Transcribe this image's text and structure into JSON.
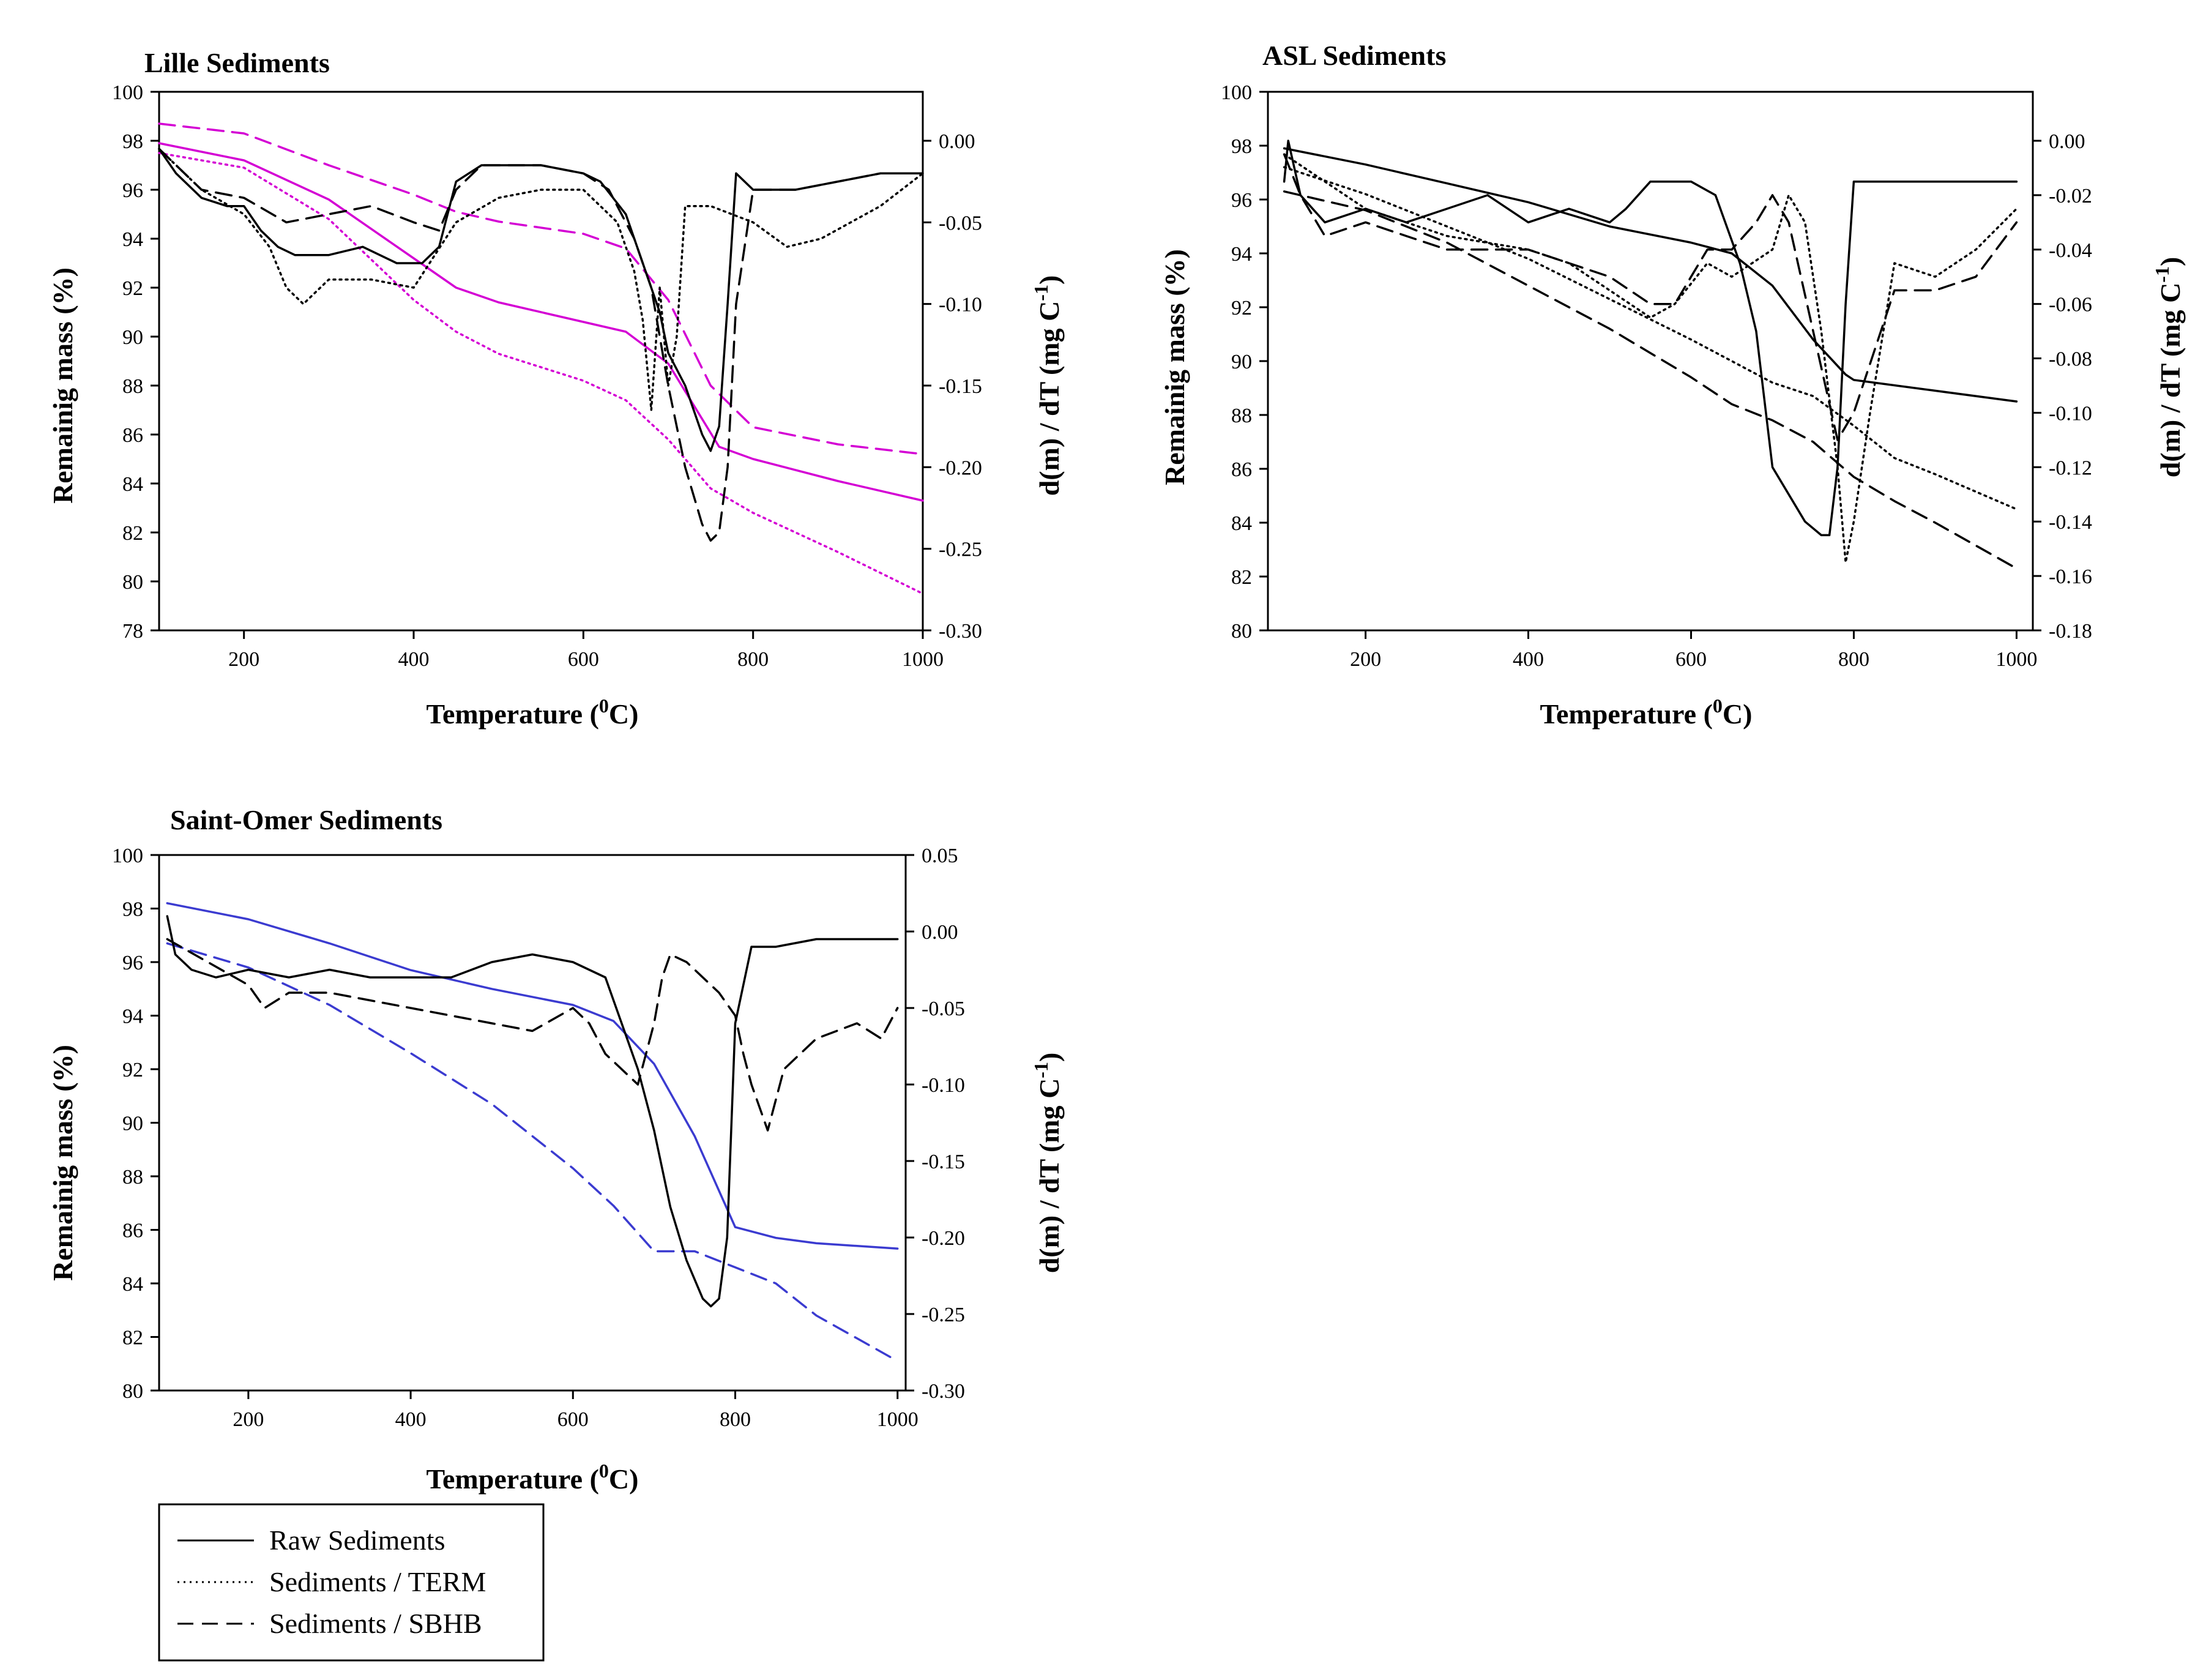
{
  "styles": {
    "solid": {
      "dash": ""
    },
    "dotted": {
      "dash": "3 7"
    },
    "dashed": {
      "dash": "26 14"
    }
  },
  "legend": {
    "items": [
      {
        "label": "Raw Sediments",
        "style": "solid"
      },
      {
        "label": "Sediments / TERM",
        "style": "dotted"
      },
      {
        "label": "Sediments / SBHB",
        "style": "dashed"
      }
    ]
  },
  "chart_data": [
    {
      "type": "line",
      "title": "Lille Sediments",
      "xlabel": "Temperature (0C)",
      "ylabel_left": "Remainig mass (%)",
      "ylabel_right": "d(m) / dT (mg C-1)",
      "xlim": [
        100,
        1000
      ],
      "ylim_left": [
        78,
        100
      ],
      "ylim_right": [
        -0.3,
        0.03
      ],
      "x_ticks": [
        200,
        400,
        600,
        800,
        1000
      ],
      "y_ticks_left": [
        78,
        80,
        82,
        84,
        86,
        88,
        90,
        92,
        94,
        96,
        98,
        100
      ],
      "y_ticks_right": [
        -0.3,
        -0.25,
        -0.2,
        -0.15,
        -0.1,
        -0.05,
        0.0
      ],
      "series": [
        {
          "name": "Raw Sediments - mass",
          "axis": "left",
          "style": "solid",
          "color": "#d400d4",
          "x": [
            100,
            200,
            300,
            400,
            450,
            500,
            600,
            650,
            700,
            760,
            800,
            900,
            1000
          ],
          "y": [
            97.9,
            97.2,
            95.6,
            93.2,
            92.0,
            91.4,
            90.6,
            90.2,
            88.9,
            85.5,
            85.0,
            84.1,
            83.3
          ]
        },
        {
          "name": "Sediments / TERM - mass",
          "axis": "left",
          "style": "dotted",
          "color": "#d400d4",
          "x": [
            100,
            200,
            300,
            400,
            450,
            500,
            600,
            650,
            700,
            750,
            800,
            900,
            1000
          ],
          "y": [
            97.5,
            96.9,
            94.8,
            91.5,
            90.2,
            89.3,
            88.2,
            87.4,
            85.8,
            83.8,
            82.8,
            81.2,
            79.5
          ]
        },
        {
          "name": "Sediments / SBHB - mass",
          "axis": "left",
          "style": "dashed",
          "color": "#d400d4",
          "x": [
            100,
            200,
            300,
            400,
            450,
            500,
            600,
            650,
            700,
            750,
            800,
            900,
            1000
          ],
          "y": [
            98.7,
            98.3,
            97.0,
            95.8,
            95.1,
            94.7,
            94.2,
            93.6,
            91.5,
            88.0,
            86.3,
            85.6,
            85.2
          ]
        },
        {
          "name": "Raw Sediments - dm/dT",
          "axis": "right",
          "style": "solid",
          "color": "#000000",
          "x": [
            100,
            120,
            150,
            180,
            200,
            220,
            240,
            260,
            280,
            300,
            340,
            380,
            410,
            430,
            450,
            480,
            500,
            550,
            600,
            620,
            650,
            670,
            690,
            700,
            720,
            740,
            750,
            760,
            770,
            780,
            800,
            850,
            900,
            950,
            1000
          ],
          "y": [
            -0.005,
            -0.02,
            -0.035,
            -0.04,
            -0.04,
            -0.055,
            -0.065,
            -0.07,
            -0.07,
            -0.07,
            -0.065,
            -0.075,
            -0.075,
            -0.065,
            -0.025,
            -0.015,
            -0.015,
            -0.015,
            -0.02,
            -0.025,
            -0.045,
            -0.075,
            -0.105,
            -0.13,
            -0.15,
            -0.18,
            -0.19,
            -0.175,
            -0.1,
            -0.02,
            -0.03,
            -0.03,
            -0.025,
            -0.02,
            -0.02
          ]
        },
        {
          "name": "Sediments / TERM - dm/dT",
          "axis": "right",
          "style": "dotted",
          "color": "#000000",
          "x": [
            100,
            150,
            200,
            230,
            250,
            270,
            300,
            350,
            400,
            450,
            500,
            550,
            600,
            640,
            660,
            670,
            680,
            690,
            700,
            710,
            720,
            750,
            800,
            840,
            880,
            950,
            1000
          ],
          "y": [
            -0.005,
            -0.03,
            -0.045,
            -0.065,
            -0.09,
            -0.1,
            -0.085,
            -0.085,
            -0.09,
            -0.05,
            -0.035,
            -0.03,
            -0.03,
            -0.05,
            -0.08,
            -0.11,
            -0.165,
            -0.09,
            -0.15,
            -0.12,
            -0.04,
            -0.04,
            -0.05,
            -0.065,
            -0.06,
            -0.04,
            -0.02
          ]
        },
        {
          "name": "Sediments / SBHB - dm/dT",
          "axis": "right",
          "style": "dashed",
          "color": "#000000",
          "x": [
            100,
            150,
            200,
            250,
            300,
            350,
            400,
            430,
            450,
            480,
            500,
            550,
            600,
            630,
            660,
            680,
            700,
            720,
            740,
            750,
            760,
            770,
            780,
            800,
            850,
            900,
            950,
            1000
          ],
          "y": [
            -0.005,
            -0.03,
            -0.035,
            -0.05,
            -0.045,
            -0.04,
            -0.05,
            -0.055,
            -0.03,
            -0.015,
            -0.015,
            -0.015,
            -0.02,
            -0.03,
            -0.06,
            -0.09,
            -0.15,
            -0.2,
            -0.235,
            -0.245,
            -0.24,
            -0.2,
            -0.1,
            -0.03,
            -0.03,
            -0.025,
            -0.02,
            -0.02
          ]
        }
      ]
    },
    {
      "type": "line",
      "title": "ASL Sediments",
      "xlabel": "Temperature (0C)",
      "ylabel_left": "Remainig mass (%)",
      "ylabel_right": "d(m) / dT (mg C-1)",
      "xlim": [
        80,
        1020
      ],
      "ylim_left": [
        80,
        100
      ],
      "ylim_right": [
        -0.18,
        0.018
      ],
      "x_ticks": [
        200,
        400,
        600,
        800,
        1000
      ],
      "y_ticks_left": [
        80,
        82,
        84,
        86,
        88,
        90,
        92,
        94,
        96,
        98,
        100
      ],
      "y_ticks_right": [
        -0.18,
        -0.16,
        -0.14,
        -0.12,
        -0.1,
        -0.08,
        -0.06,
        -0.04,
        -0.02,
        0.0
      ],
      "series": [
        {
          "name": "Raw Sediments - mass",
          "axis": "left",
          "style": "solid",
          "color": "#000000",
          "x": [
            100,
            200,
            300,
            400,
            500,
            600,
            650,
            700,
            750,
            790,
            800,
            900,
            1000
          ],
          "y": [
            97.9,
            97.3,
            96.6,
            95.9,
            95.0,
            94.4,
            94.0,
            92.8,
            90.8,
            89.5,
            89.3,
            88.9,
            88.5
          ]
        },
        {
          "name": "Sediments / TERM - mass",
          "axis": "left",
          "style": "dotted",
          "color": "#000000",
          "x": [
            100,
            200,
            300,
            400,
            500,
            600,
            700,
            750,
            800,
            850,
            900,
            1000
          ],
          "y": [
            97.2,
            96.2,
            95.0,
            93.8,
            92.3,
            90.8,
            89.2,
            88.7,
            87.6,
            86.4,
            85.8,
            84.5
          ]
        },
        {
          "name": "Sediments / SBHB - mass",
          "axis": "left",
          "style": "dashed",
          "color": "#000000",
          "x": [
            100,
            200,
            300,
            400,
            500,
            600,
            650,
            700,
            750,
            800,
            850,
            900,
            1000
          ],
          "y": [
            96.3,
            95.6,
            94.4,
            92.8,
            91.2,
            89.4,
            88.4,
            87.8,
            87.0,
            85.7,
            84.8,
            84.0,
            82.3
          ]
        },
        {
          "name": "Raw Sediments - dm/dT",
          "axis": "right",
          "style": "solid",
          "color": "#000000",
          "x": [
            100,
            105,
            120,
            150,
            200,
            250,
            300,
            350,
            400,
            450,
            500,
            520,
            550,
            600,
            630,
            660,
            680,
            700,
            720,
            740,
            760,
            770,
            780,
            790,
            800,
            850,
            900,
            950,
            1000
          ],
          "y": [
            -0.015,
            0.0,
            -0.02,
            -0.03,
            -0.025,
            -0.03,
            -0.025,
            -0.02,
            -0.03,
            -0.025,
            -0.03,
            -0.025,
            -0.015,
            -0.015,
            -0.02,
            -0.045,
            -0.07,
            -0.12,
            -0.13,
            -0.14,
            -0.145,
            -0.145,
            -0.12,
            -0.06,
            -0.015,
            -0.015,
            -0.015,
            -0.015,
            -0.015
          ]
        },
        {
          "name": "Sediments / TERM - dm/dT",
          "axis": "right",
          "style": "dotted",
          "color": "#000000",
          "x": [
            100,
            150,
            200,
            300,
            400,
            450,
            500,
            550,
            580,
            620,
            650,
            700,
            720,
            740,
            760,
            780,
            790,
            800,
            820,
            850,
            900,
            950,
            1000
          ],
          "y": [
            -0.005,
            -0.015,
            -0.025,
            -0.035,
            -0.04,
            -0.045,
            -0.055,
            -0.065,
            -0.06,
            -0.045,
            -0.05,
            -0.04,
            -0.02,
            -0.03,
            -0.07,
            -0.12,
            -0.155,
            -0.14,
            -0.1,
            -0.045,
            -0.05,
            -0.04,
            -0.025
          ]
        },
        {
          "name": "Sediments / SBHB - dm/dT",
          "axis": "right",
          "style": "dashed",
          "color": "#000000",
          "x": [
            100,
            120,
            150,
            200,
            250,
            300,
            400,
            450,
            500,
            550,
            580,
            620,
            650,
            680,
            700,
            720,
            750,
            780,
            800,
            850,
            900,
            950,
            1000
          ],
          "y": [
            -0.005,
            -0.02,
            -0.035,
            -0.03,
            -0.035,
            -0.04,
            -0.04,
            -0.045,
            -0.05,
            -0.06,
            -0.06,
            -0.04,
            -0.04,
            -0.03,
            -0.02,
            -0.03,
            -0.07,
            -0.11,
            -0.1,
            -0.055,
            -0.055,
            -0.05,
            -0.03
          ]
        }
      ]
    },
    {
      "type": "line",
      "title": "Saint-Omer Sediments",
      "xlabel": "Temperature (0C)",
      "ylabel_left": "Remainig mass (%)",
      "ylabel_right": "d(m) / dT (mg C-1)",
      "xlim": [
        90,
        1010
      ],
      "ylim_left": [
        80,
        100
      ],
      "ylim_right": [
        -0.3,
        0.05
      ],
      "x_ticks": [
        200,
        400,
        600,
        800,
        1000
      ],
      "y_ticks_left": [
        80,
        82,
        84,
        86,
        88,
        90,
        92,
        94,
        96,
        98,
        100
      ],
      "y_ticks_right": [
        -0.3,
        -0.25,
        -0.2,
        -0.15,
        -0.1,
        -0.05,
        0.0,
        0.05
      ],
      "series": [
        {
          "name": "Raw Sediments - mass",
          "axis": "left",
          "style": "solid",
          "color": "#3b3bd0",
          "x": [
            100,
            200,
            300,
            400,
            500,
            600,
            650,
            700,
            750,
            800,
            850,
            900,
            1000
          ],
          "y": [
            98.2,
            97.6,
            96.7,
            95.7,
            95.0,
            94.4,
            93.8,
            92.2,
            89.5,
            86.1,
            85.7,
            85.5,
            85.3
          ]
        },
        {
          "name": "Sediments / SBHB - mass",
          "axis": "left",
          "style": "dashed",
          "color": "#3b3bd0",
          "x": [
            100,
            200,
            300,
            400,
            500,
            600,
            650,
            700,
            750,
            800,
            850,
            900,
            1000
          ],
          "y": [
            96.7,
            95.8,
            94.4,
            92.6,
            90.7,
            88.3,
            86.9,
            85.2,
            85.2,
            84.6,
            84.0,
            82.8,
            81.1
          ]
        },
        {
          "name": "Raw Sediments - dm/dT",
          "axis": "right",
          "style": "solid",
          "color": "#000000",
          "x": [
            100,
            110,
            130,
            160,
            200,
            250,
            300,
            350,
            400,
            450,
            500,
            550,
            600,
            640,
            660,
            680,
            700,
            720,
            740,
            760,
            770,
            780,
            790,
            800,
            820,
            850,
            900,
            950,
            1000
          ],
          "y": [
            0.01,
            -0.015,
            -0.025,
            -0.03,
            -0.025,
            -0.03,
            -0.025,
            -0.03,
            -0.03,
            -0.03,
            -0.02,
            -0.015,
            -0.02,
            -0.03,
            -0.06,
            -0.09,
            -0.13,
            -0.18,
            -0.215,
            -0.24,
            -0.245,
            -0.24,
            -0.2,
            -0.06,
            -0.01,
            -0.01,
            -0.005,
            -0.005,
            -0.005
          ]
        },
        {
          "name": "Sediments / SBHB - dm/dT",
          "axis": "right",
          "style": "dashed",
          "color": "#000000",
          "x": [
            100,
            150,
            200,
            220,
            250,
            300,
            350,
            400,
            450,
            500,
            550,
            600,
            620,
            640,
            660,
            680,
            700,
            710,
            720,
            740,
            760,
            780,
            800,
            810,
            820,
            840,
            860,
            900,
            950,
            980,
            1000
          ],
          "y": [
            -0.005,
            -0.02,
            -0.035,
            -0.05,
            -0.04,
            -0.04,
            -0.045,
            -0.05,
            -0.055,
            -0.06,
            -0.065,
            -0.05,
            -0.06,
            -0.08,
            -0.09,
            -0.1,
            -0.06,
            -0.03,
            -0.015,
            -0.02,
            -0.03,
            -0.04,
            -0.055,
            -0.08,
            -0.1,
            -0.13,
            -0.09,
            -0.07,
            -0.06,
            -0.07,
            -0.05
          ]
        }
      ]
    }
  ]
}
